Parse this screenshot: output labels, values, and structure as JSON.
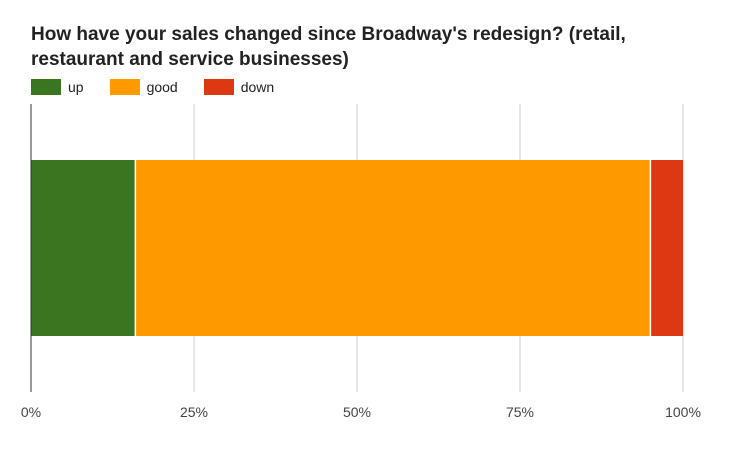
{
  "chart_data": {
    "type": "bar",
    "orientation": "horizontal",
    "stacked": true,
    "title": "How have your sales changed since Broadway's redesign? (retail, restaurant and service businesses)",
    "xlabel": "",
    "ylabel": "",
    "categories": [
      ""
    ],
    "series": [
      {
        "name": "up",
        "color": "#3a7620",
        "values": [
          16
        ]
      },
      {
        "name": "good",
        "color": "#ff9900",
        "values": [
          79
        ]
      },
      {
        "name": "down",
        "color": "#dc3912",
        "values": [
          5
        ]
      }
    ],
    "xlim": [
      0,
      100
    ],
    "x_ticks": [
      "0%",
      "25%",
      "50%",
      "75%",
      "100%"
    ],
    "grid": true,
    "legend_position": "top"
  }
}
